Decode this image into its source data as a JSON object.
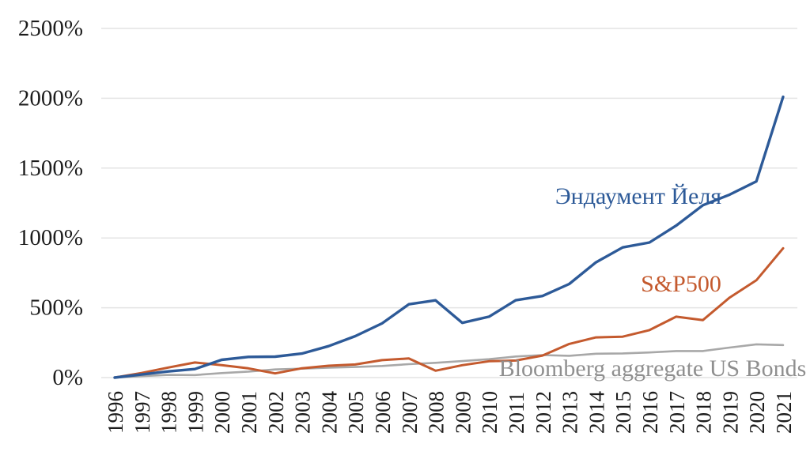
{
  "chart_data": {
    "type": "line",
    "title": "",
    "xlabel": "",
    "ylabel": "",
    "categories": [
      "1996",
      "1997",
      "1998",
      "1999",
      "2000",
      "2001",
      "2002",
      "2003",
      "2004",
      "2005",
      "2006",
      "2007",
      "2008",
      "2009",
      "2010",
      "2011",
      "2012",
      "2013",
      "2014",
      "2015",
      "2016",
      "2017",
      "2018",
      "2019",
      "2020",
      "2021"
    ],
    "series": [
      {
        "name": "Эндаумент Йеля",
        "color": "#2d5a98",
        "label_color": "#2d5a98",
        "values": [
          0,
          22,
          44,
          61,
          127,
          148,
          150,
          172,
          225,
          297,
          388,
          525,
          553,
          392,
          436,
          554,
          584,
          670,
          825,
          932,
          967,
          1088,
          1234,
          1310,
          1405,
          2010
        ]
      },
      {
        "name": "S&P500",
        "color": "#c45a2e",
        "label_color": "#c45a2e",
        "values": [
          0,
          33,
          72,
          108,
          89,
          66,
          30,
          67,
          85,
          94,
          125,
          137,
          49,
          89,
          117,
          122,
          158,
          241,
          288,
          293,
          340,
          436,
          412,
          573,
          697,
          926
        ]
      },
      {
        "name": "Bloomberg aggregate US Bonds",
        "color": "#a8a8a8",
        "label_color": "#8f8f8f",
        "values": [
          0,
          10,
          19,
          18,
          32,
          43,
          58,
          64,
          71,
          76,
          83,
          96,
          106,
          118,
          132,
          151,
          161,
          156,
          171,
          173,
          180,
          190,
          190,
          215,
          238,
          233
        ]
      }
    ],
    "ylim": [
      0,
      2500
    ],
    "ytick_step": 500,
    "ytick_labels": [
      "0%",
      "500%",
      "1000%",
      "1500%",
      "2000%",
      "2500%"
    ],
    "grid": true,
    "legend_position": "inline-annotations"
  },
  "style": {
    "grid_color": "#e4e4e4",
    "tick_color": "#1c1c1c",
    "background": "#ffffff"
  }
}
